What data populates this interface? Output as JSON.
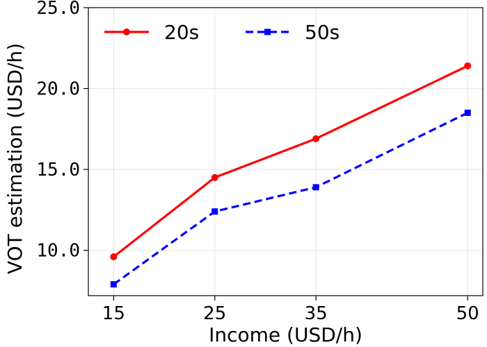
{
  "chart_data": {
    "type": "line",
    "xlabel": "Income (USD/h)",
    "ylabel": "VOT estimation (USD/h)",
    "x": [
      15,
      25,
      35,
      50
    ],
    "xticks": [
      "15",
      "25",
      "35",
      "50"
    ],
    "yticks": [
      "10.0",
      "15.0",
      "20.0",
      "25.0"
    ],
    "xlim": [
      12.5,
      51.5
    ],
    "ylim": [
      7.2,
      25.0
    ],
    "grid": true,
    "legend_position": "top-left",
    "series": [
      {
        "name": "20s",
        "values": [
          9.6,
          14.5,
          16.9,
          21.4
        ],
        "color": "#ff0000",
        "marker": "circle",
        "line_style": "solid"
      },
      {
        "name": "50s",
        "values": [
          7.9,
          12.4,
          13.9,
          18.5
        ],
        "color": "#0000ff",
        "marker": "square",
        "line_style": "dashed"
      }
    ]
  }
}
